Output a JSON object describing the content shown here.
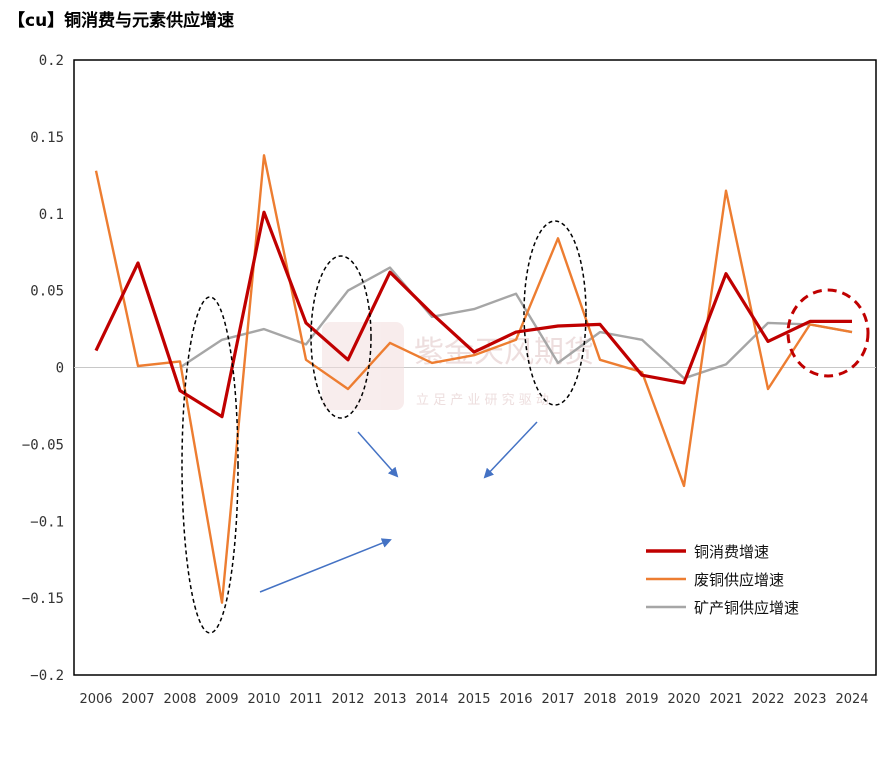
{
  "chart_data": {
    "type": "line",
    "title": "【cu】铜消费与元素供应增速",
    "categories": [
      "2006",
      "2007",
      "2008",
      "2009",
      "2010",
      "2011",
      "2012",
      "2013",
      "2014",
      "2015",
      "2016",
      "2017",
      "2018",
      "2019",
      "2020",
      "2021",
      "2022",
      "2023",
      "2024"
    ],
    "ylim": [
      -0.2,
      0.2
    ],
    "yticks": [
      "0.2",
      "0.15",
      "0.1",
      "0.05",
      "0",
      "−0.05",
      "−0.1",
      "−0.15",
      "−0.2"
    ],
    "ytick_values": [
      0.2,
      0.15,
      0.1,
      0.05,
      0,
      -0.05,
      -0.1,
      -0.15,
      -0.2
    ],
    "grid": false,
    "legend_position": "bottom-right",
    "series": [
      {
        "name": "铜消费增速",
        "color": "#c00000",
        "values": [
          0.011,
          0.068,
          -0.015,
          -0.032,
          0.101,
          0.029,
          0.005,
          0.062,
          0.035,
          0.01,
          0.023,
          0.027,
          0.028,
          -0.005,
          -0.01,
          0.061,
          0.017,
          0.03,
          0.03
        ]
      },
      {
        "name": "废铜供应增速",
        "color": "#ed7d31",
        "values": [
          0.128,
          0.001,
          0.004,
          -0.153,
          0.138,
          0.005,
          -0.014,
          0.016,
          0.003,
          0.008,
          0.018,
          0.084,
          0.005,
          -0.003,
          -0.077,
          0.115,
          -0.014,
          0.028,
          0.023
        ]
      },
      {
        "name": "矿产铜供应增速",
        "color": "#a6a6a6",
        "values": [
          null,
          null,
          0.0,
          0.018,
          0.025,
          0.015,
          0.05,
          0.065,
          0.033,
          0.038,
          0.048,
          0.003,
          0.023,
          0.018,
          -0.007,
          0.002,
          0.029,
          0.028,
          0.023
        ]
      }
    ],
    "annotations": {
      "watermark_main": "紫金天风期货",
      "watermark_sub": "立 足 产 业   研 究 驱 动"
    }
  },
  "colors": {
    "ellipse_black": "#000000",
    "ellipse_red": "#c00000",
    "arrow_blue": "#4472c4"
  }
}
